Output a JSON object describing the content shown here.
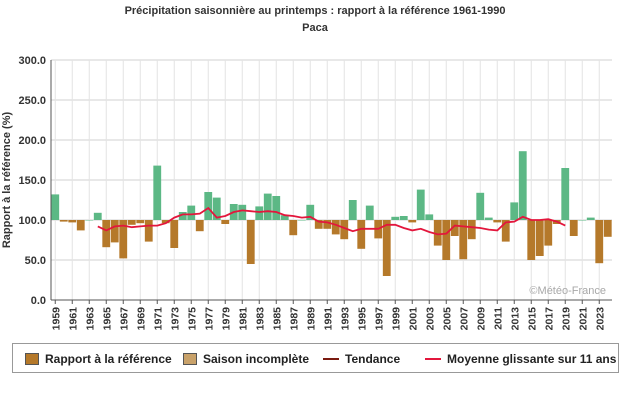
{
  "chart_data": {
    "type": "bar",
    "title": "Précipitation saisonnière au printemps : rapport à la référence 1961-1990",
    "subtitle": "Paca",
    "ylabel": "Rapport à la référence (%)",
    "xlabel": "",
    "ylim": [
      0,
      300
    ],
    "yticks": [
      "0.0",
      "50.0",
      "100.0",
      "150.0",
      "200.0",
      "250.0",
      "300.0"
    ],
    "baseline": 100,
    "grid": true,
    "x": [
      1959,
      1960,
      1961,
      1962,
      1963,
      1964,
      1965,
      1966,
      1967,
      1968,
      1969,
      1970,
      1971,
      1972,
      1973,
      1974,
      1975,
      1976,
      1977,
      1978,
      1979,
      1980,
      1981,
      1982,
      1983,
      1984,
      1985,
      1986,
      1987,
      1988,
      1989,
      1990,
      1991,
      1992,
      1993,
      1994,
      1995,
      1996,
      1997,
      1998,
      1999,
      2000,
      2001,
      2002,
      2003,
      2004,
      2005,
      2006,
      2007,
      2008,
      2009,
      2010,
      2011,
      2012,
      2013,
      2014,
      2015,
      2016,
      2017,
      2018,
      2019,
      2020,
      2021,
      2022,
      2023,
      2024
    ],
    "xticks": [
      1959,
      1961,
      1963,
      1965,
      1967,
      1969,
      1971,
      1973,
      1975,
      1977,
      1979,
      1981,
      1983,
      1985,
      1987,
      1989,
      1991,
      1993,
      1995,
      1997,
      1999,
      2001,
      2003,
      2005,
      2007,
      2009,
      2011,
      2013,
      2015,
      2017,
      2019,
      2021,
      2023
    ],
    "series": [
      {
        "name": "Rapport à la référence",
        "color_below": "#b5792a",
        "color_above": "#5cb885",
        "values": [
          132,
          98,
          97,
          87,
          100,
          109,
          66,
          72,
          52,
          94,
          96,
          73,
          168,
          96,
          65,
          110,
          118,
          86,
          135,
          128,
          95,
          120,
          119,
          45,
          117,
          133,
          130,
          106,
          81,
          100,
          119,
          89,
          89,
          82,
          76,
          125,
          64,
          118,
          77,
          30,
          104,
          105,
          97,
          138,
          107,
          68,
          50,
          80,
          51,
          76,
          134,
          103,
          97,
          73,
          122,
          186,
          50,
          55,
          68,
          95,
          165,
          80,
          100,
          103,
          46,
          79
        ]
      },
      {
        "name": "Moyenne glissante sur 11 ans",
        "color": "#e3163c",
        "x": [
          1964,
          1965,
          1966,
          1967,
          1968,
          1969,
          1970,
          1971,
          1972,
          1973,
          1974,
          1975,
          1976,
          1977,
          1978,
          1979,
          1980,
          1981,
          1982,
          1983,
          1984,
          1985,
          1986,
          1987,
          1988,
          1989,
          1990,
          1991,
          1992,
          1993,
          1994,
          1995,
          1996,
          1997,
          1998,
          1999,
          2000,
          2001,
          2002,
          2003,
          2004,
          2005,
          2006,
          2007,
          2008,
          2009,
          2010,
          2011,
          2012,
          2013,
          2014,
          2015,
          2016,
          2017,
          2018,
          2019
        ],
        "values": [
          92,
          87,
          92,
          93,
          91,
          92,
          93,
          93,
          96,
          103,
          107,
          107,
          108,
          115,
          103,
          105,
          110,
          112,
          111,
          110,
          111,
          110,
          106,
          105,
          103,
          104,
          98,
          97,
          94,
          90,
          86,
          89,
          89,
          89,
          94,
          94,
          90,
          87,
          89,
          85,
          82,
          83,
          93,
          92,
          91,
          90,
          88,
          87,
          97,
          98,
          104,
          100,
          100,
          101,
          98,
          93
        ]
      }
    ],
    "legend_position": "bottom",
    "watermark": "©Météo-France"
  },
  "legend": [
    {
      "label": "Rapport à la référence",
      "kind": "box",
      "color": "#b5792a"
    },
    {
      "label": "Saison incomplète",
      "kind": "box",
      "color": "#c9a26a"
    },
    {
      "label": "Tendance",
      "kind": "line",
      "color": "#7a1a10"
    },
    {
      "label": "Moyenne glissante sur 11 ans",
      "kind": "line",
      "color": "#e3163c"
    }
  ]
}
